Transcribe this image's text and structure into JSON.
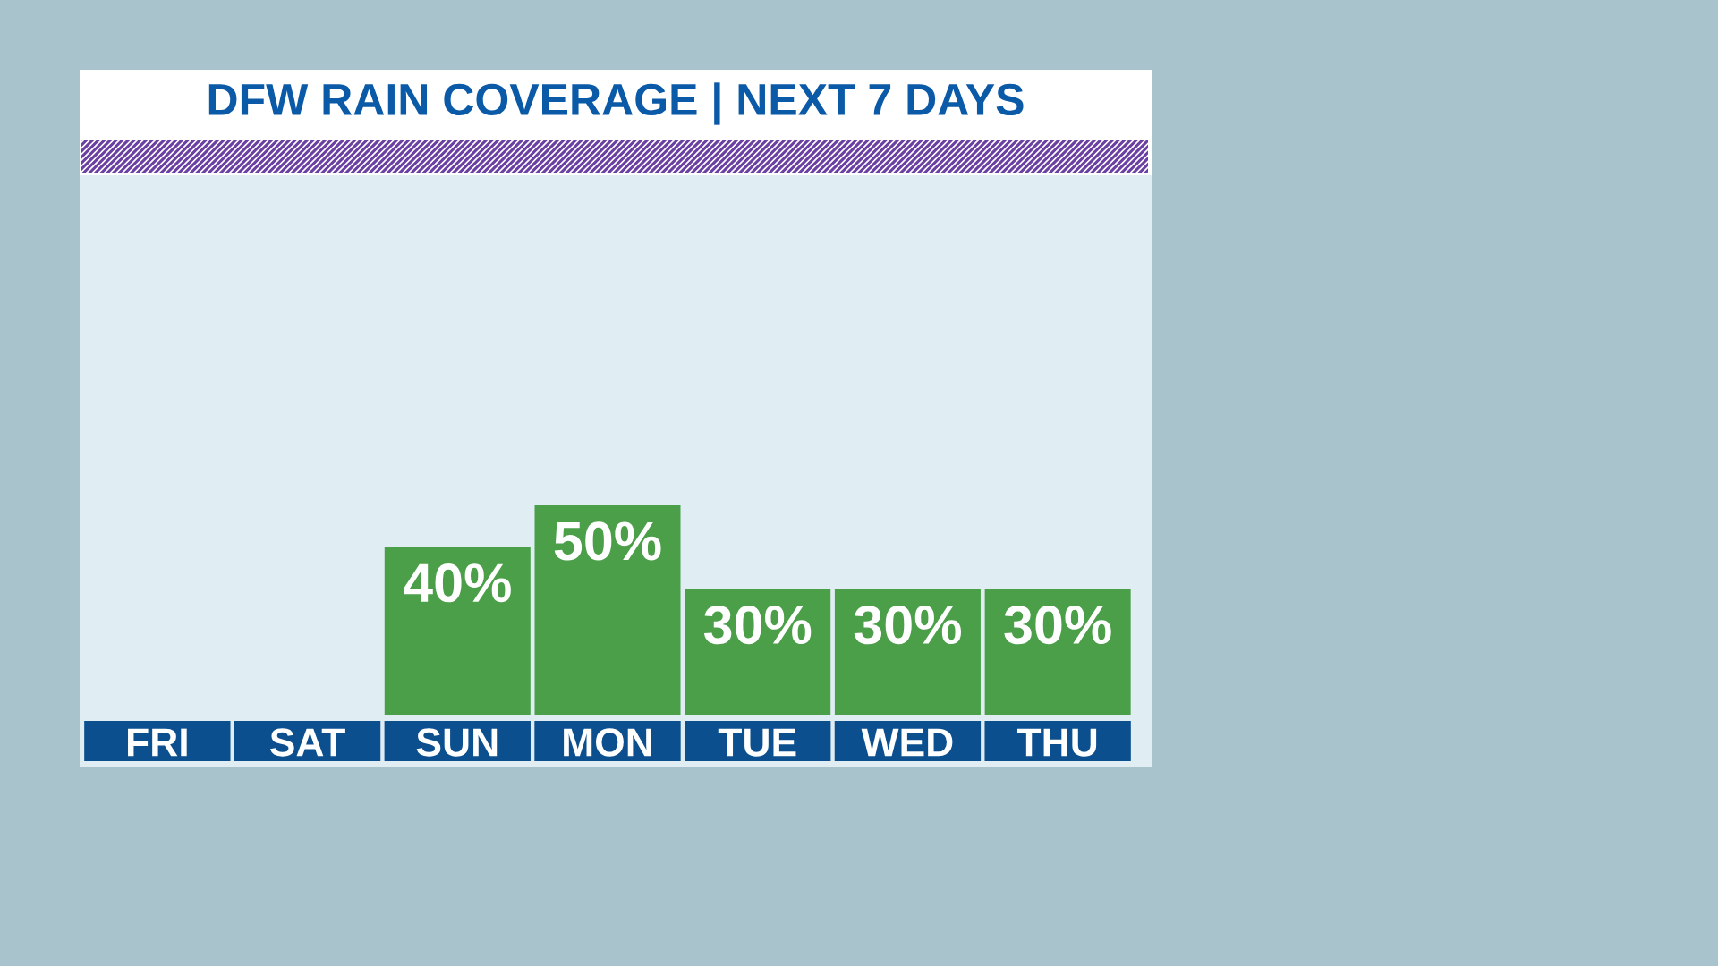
{
  "chart_data": {
    "type": "bar",
    "title": "DFW RAIN COVERAGE | NEXT 7 DAYS",
    "categories": [
      "FRI",
      "SAT",
      "SUN",
      "MON",
      "TUE",
      "WED",
      "THU"
    ],
    "values": [
      null,
      null,
      40,
      50,
      30,
      30,
      30
    ],
    "value_labels": [
      null,
      null,
      "40%",
      "50%",
      "30%",
      "30%",
      "30%"
    ],
    "color": "#4a9f48",
    "tick_labels": "x"
  }
}
